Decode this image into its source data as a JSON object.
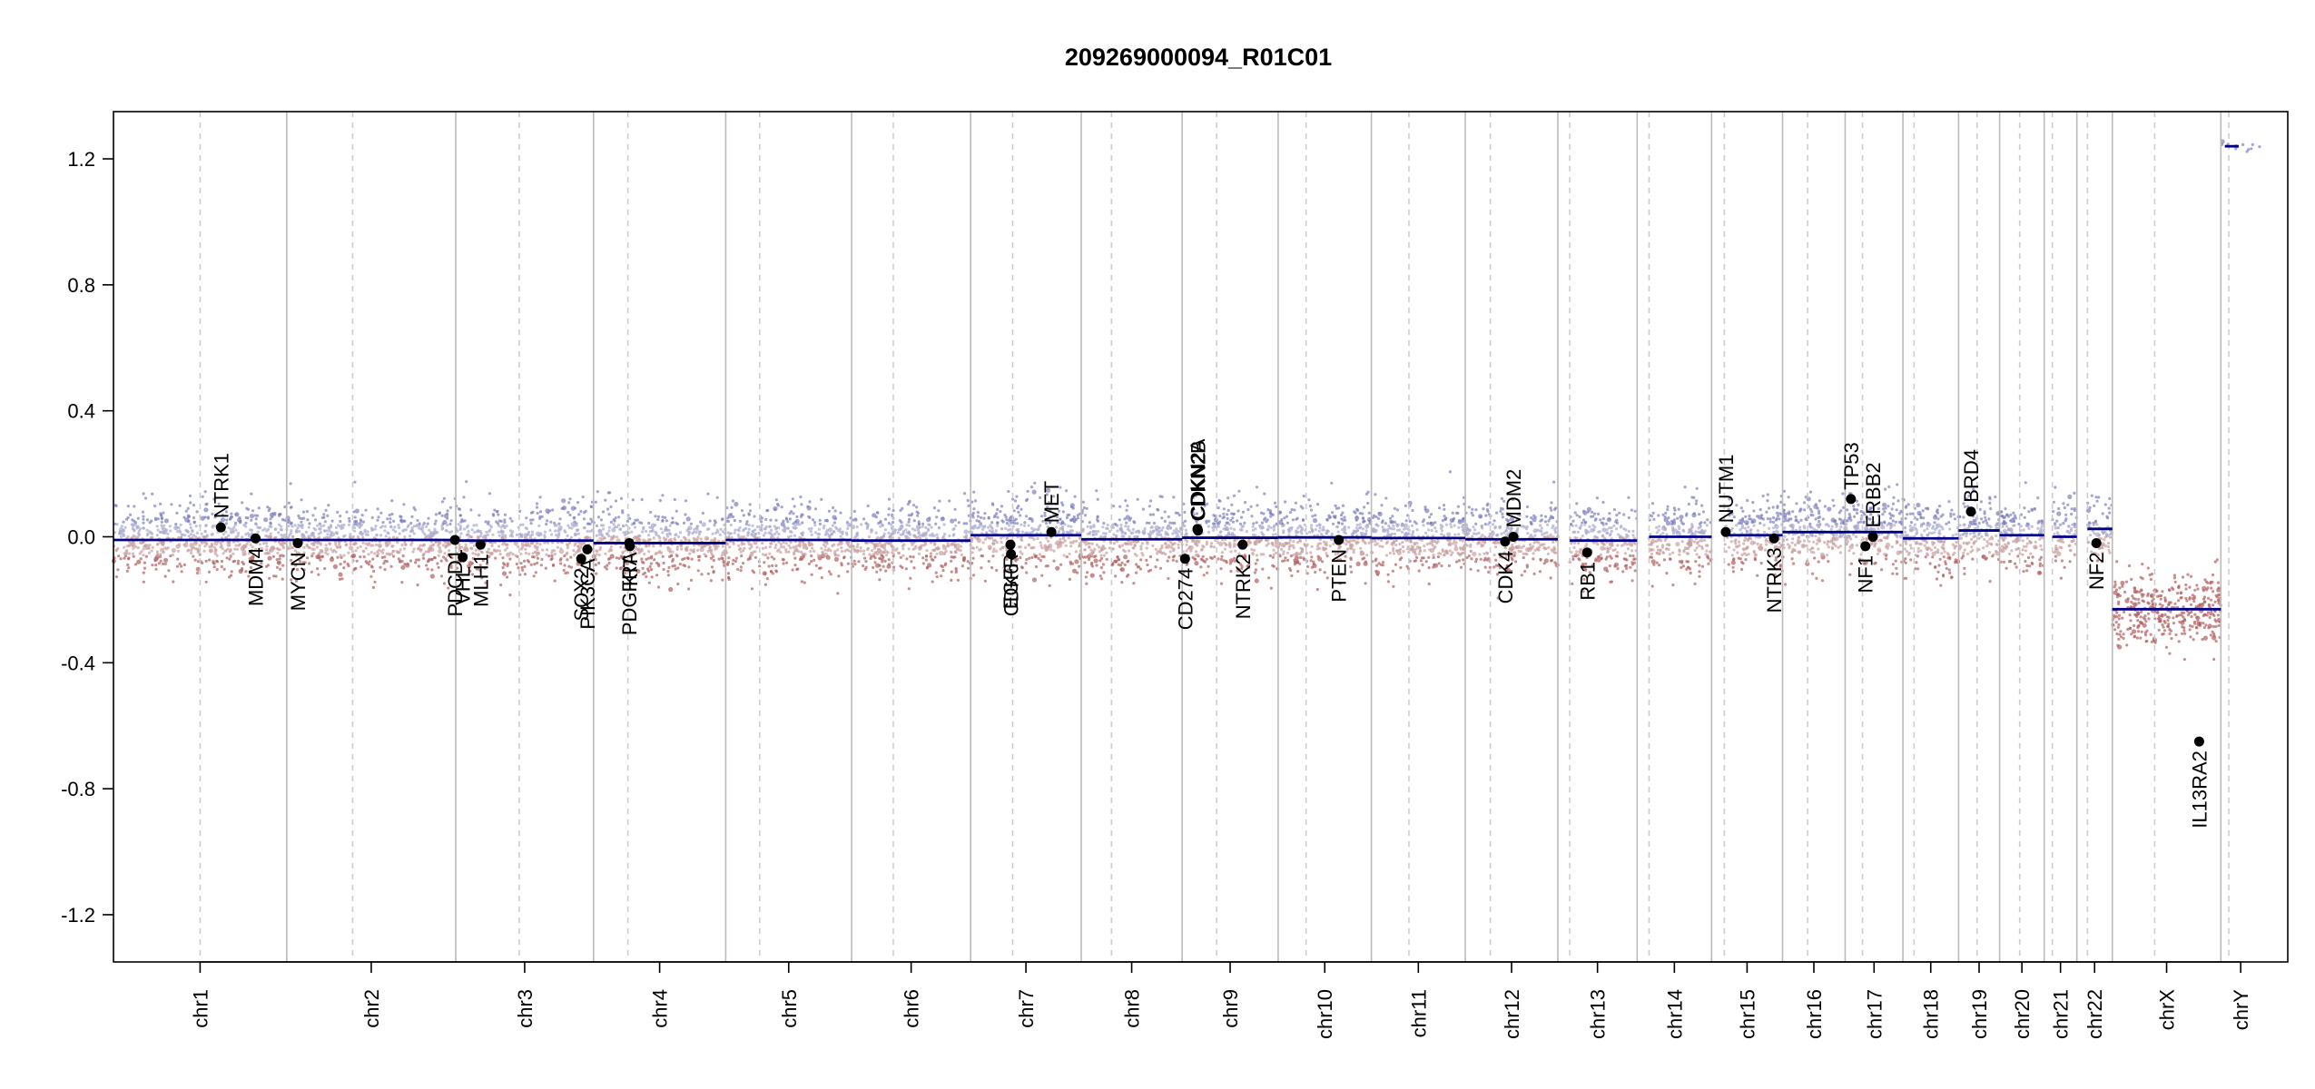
{
  "chart_data": {
    "type": "scatter",
    "title": "209269000094_R01C01",
    "xlabel": "",
    "ylabel": "",
    "ylim": [
      -1.35,
      1.35
    ],
    "yticks": [
      -1.2,
      -0.8,
      -0.4,
      0.0,
      0.4,
      0.8,
      1.2
    ],
    "ytick_labels": [
      "-1.2",
      "-0.8",
      "-0.4",
      "0.0",
      "0.4",
      "0.8",
      "1.2"
    ],
    "grid": false,
    "legend": "none",
    "colors": {
      "gain_probe": "#a9a9cf",
      "loss_probe": "#c9a0a0",
      "gain_probe_strong": "#7f7fbf",
      "loss_probe_strong": "#b06060",
      "segment": "#00008b",
      "chr_border": "#bbbbbb",
      "centromere": "#cccccc",
      "gene_point": "#000000"
    },
    "chromosomes": [
      {
        "name": "chr1",
        "length": 249,
        "centromere": 0.5,
        "segments": [
          [
            0,
            1,
            -0.01
          ]
        ]
      },
      {
        "name": "chr2",
        "length": 243,
        "centromere": 0.39,
        "segments": [
          [
            0,
            1,
            -0.01
          ]
        ]
      },
      {
        "name": "chr3",
        "length": 198,
        "centromere": 0.46,
        "segments": [
          [
            0,
            1,
            -0.012
          ]
        ]
      },
      {
        "name": "chr4",
        "length": 190,
        "centromere": 0.26,
        "segments": [
          [
            0,
            1,
            -0.02
          ]
        ]
      },
      {
        "name": "chr5",
        "length": 181,
        "centromere": 0.27,
        "segments": [
          [
            0,
            1,
            -0.01
          ]
        ]
      },
      {
        "name": "chr6",
        "length": 171,
        "centromere": 0.35,
        "segments": [
          [
            0,
            1,
            -0.012
          ]
        ]
      },
      {
        "name": "chr7",
        "length": 159,
        "centromere": 0.38,
        "segments": [
          [
            0,
            1,
            0.005
          ]
        ]
      },
      {
        "name": "chr8",
        "length": 145,
        "centromere": 0.3,
        "segments": [
          [
            0,
            1,
            -0.008
          ]
        ]
      },
      {
        "name": "chr9",
        "length": 138,
        "centromere": 0.36,
        "segments": [
          [
            0,
            1,
            -0.003
          ]
        ]
      },
      {
        "name": "chr10",
        "length": 134,
        "centromere": 0.3,
        "segments": [
          [
            0,
            1,
            -0.002
          ]
        ]
      },
      {
        "name": "chr11",
        "length": 135,
        "centromere": 0.4,
        "segments": [
          [
            0,
            1,
            -0.004
          ]
        ]
      },
      {
        "name": "chr12",
        "length": 133,
        "centromere": 0.27,
        "segments": [
          [
            0,
            1,
            -0.008
          ]
        ]
      },
      {
        "name": "chr13",
        "length": 114,
        "centromere": 0.15,
        "segments": [
          [
            0.15,
            1,
            -0.012
          ]
        ]
      },
      {
        "name": "chr14",
        "length": 107,
        "centromere": 0.16,
        "segments": [
          [
            0.16,
            1,
            0.0
          ]
        ]
      },
      {
        "name": "chr15",
        "length": 102,
        "centromere": 0.18,
        "segments": [
          [
            0.18,
            1,
            0.005
          ]
        ]
      },
      {
        "name": "chr16",
        "length": 90,
        "centromere": 0.4,
        "segments": [
          [
            0,
            1,
            0.015
          ]
        ]
      },
      {
        "name": "chr17",
        "length": 83,
        "centromere": 0.3,
        "segments": [
          [
            0,
            1,
            0.015
          ]
        ]
      },
      {
        "name": "chr18",
        "length": 80,
        "centromere": 0.2,
        "segments": [
          [
            0,
            1,
            -0.005
          ]
        ]
      },
      {
        "name": "chr19",
        "length": 59,
        "centromere": 0.45,
        "segments": [
          [
            0,
            1,
            0.02
          ]
        ]
      },
      {
        "name": "chr20",
        "length": 64,
        "centromere": 0.45,
        "segments": [
          [
            0,
            1,
            0.005
          ]
        ]
      },
      {
        "name": "chr21",
        "length": 47,
        "centromere": 0.25,
        "segments": [
          [
            0.25,
            1,
            0.0
          ]
        ]
      },
      {
        "name": "chr22",
        "length": 51,
        "centromere": 0.3,
        "segments": [
          [
            0.3,
            1,
            0.025
          ]
        ]
      },
      {
        "name": "chrX",
        "length": 156,
        "centromere": 0.39,
        "segments": [
          [
            0,
            1,
            -0.23
          ]
        ]
      },
      {
        "name": "chrY",
        "length": 57,
        "centromere": 0.2,
        "segments": [
          [
            0.1,
            0.45,
            1.24
          ]
        ]
      }
    ],
    "genes": [
      {
        "name": "NTRK1",
        "chr": "chr1",
        "pos": 0.62,
        "value": 0.03,
        "label_side": "above"
      },
      {
        "name": "MDM4",
        "chr": "chr1",
        "pos": 0.82,
        "value": -0.005,
        "label_side": "below"
      },
      {
        "name": "MYCN",
        "chr": "chr2",
        "pos": 0.065,
        "value": -0.02,
        "label_side": "below"
      },
      {
        "name": "PDCD1",
        "chr": "chr2",
        "pos": 0.995,
        "value": -0.01,
        "label_side": "below"
      },
      {
        "name": "VHL",
        "chr": "chr3",
        "pos": 0.05,
        "value": -0.065,
        "label_side": "below"
      },
      {
        "name": "MLH1",
        "chr": "chr3",
        "pos": 0.18,
        "value": -0.025,
        "label_side": "below"
      },
      {
        "name": "SOX2",
        "chr": "chr3",
        "pos": 0.91,
        "value": -0.07,
        "label_side": "below"
      },
      {
        "name": "PIK3CA",
        "chr": "chr3",
        "pos": 0.955,
        "value": -0.04,
        "label_side": "below"
      },
      {
        "name": "PDGFRA",
        "chr": "chr4",
        "pos": 0.27,
        "value": -0.02,
        "label_side": "below"
      },
      {
        "name": "KIT",
        "chr": "chr4",
        "pos": 0.275,
        "value": -0.03,
        "label_side": "below"
      },
      {
        "name": "EGFR",
        "chr": "chr7",
        "pos": 0.36,
        "value": -0.025,
        "label_side": "below"
      },
      {
        "name": "CDK6",
        "chr": "chr7",
        "pos": 0.365,
        "value": -0.055,
        "label_side": "below"
      },
      {
        "name": "MET",
        "chr": "chr7",
        "pos": 0.73,
        "value": 0.015,
        "label_side": "above"
      },
      {
        "name": "CD274",
        "chr": "chr9",
        "pos": 0.03,
        "value": -0.07,
        "label_side": "below"
      },
      {
        "name": "CDKN2A",
        "chr": "chr9",
        "pos": 0.16,
        "value": 0.025,
        "label_side": "above"
      },
      {
        "name": "CDKN2B",
        "chr": "chr9",
        "pos": 0.165,
        "value": 0.02,
        "label_side": "above"
      },
      {
        "name": "NTRK2",
        "chr": "chr9",
        "pos": 0.63,
        "value": -0.025,
        "label_side": "below"
      },
      {
        "name": "PTEN",
        "chr": "chr10",
        "pos": 0.65,
        "value": -0.01,
        "label_side": "below"
      },
      {
        "name": "CDK4",
        "chr": "chr12",
        "pos": 0.43,
        "value": -0.015,
        "label_side": "below"
      },
      {
        "name": "MDM2",
        "chr": "chr12",
        "pos": 0.52,
        "value": 0.0,
        "label_side": "above"
      },
      {
        "name": "RB1",
        "chr": "chr13",
        "pos": 0.37,
        "value": -0.05,
        "label_side": "below"
      },
      {
        "name": "NUTM1",
        "chr": "chr15",
        "pos": 0.2,
        "value": 0.015,
        "label_side": "above"
      },
      {
        "name": "NTRK3",
        "chr": "chr15",
        "pos": 0.88,
        "value": -0.005,
        "label_side": "below"
      },
      {
        "name": "TP53",
        "chr": "chr17",
        "pos": 0.1,
        "value": 0.12,
        "label_side": "above"
      },
      {
        "name": "NF1",
        "chr": "chr17",
        "pos": 0.35,
        "value": -0.03,
        "label_side": "below"
      },
      {
        "name": "ERBB2",
        "chr": "chr17",
        "pos": 0.48,
        "value": 0.0,
        "label_side": "above"
      },
      {
        "name": "BRD4",
        "chr": "chr19",
        "pos": 0.3,
        "value": 0.08,
        "label_side": "above"
      },
      {
        "name": "NF2",
        "chr": "chr22",
        "pos": 0.55,
        "value": -0.02,
        "label_side": "below"
      },
      {
        "name": "IL13RA2",
        "chr": "chrX",
        "pos": 0.8,
        "value": -0.65,
        "label_side": "below"
      }
    ]
  }
}
